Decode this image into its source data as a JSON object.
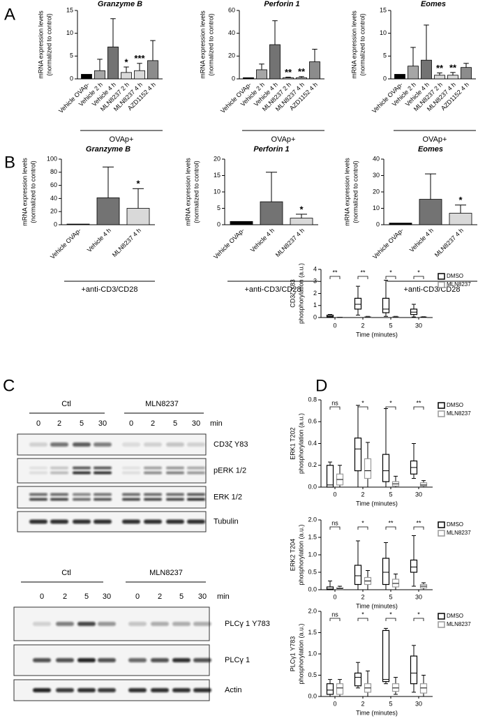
{
  "panel_labels": [
    "A",
    "B",
    "C",
    "D"
  ],
  "chart_data": [
    {
      "type": "bar",
      "title": "Granzyme B",
      "ylabel": [
        "mRNA expression levels",
        "(normalized to control)"
      ],
      "categories": [
        "Vehicle OVAp-",
        "Vehicle 2 h",
        "Vehicle 4 h",
        "MLN8237 2 h",
        "MLN8237 4 h",
        "AZD1152 4 h"
      ],
      "values": [
        1,
        1.8,
        7.0,
        1.4,
        1.8,
        4.0
      ],
      "errors": [
        null,
        2.5,
        6.2,
        1.2,
        1.6,
        4.4
      ],
      "colors": [
        "#000000",
        "#a6a6a6",
        "#737373",
        "#d9d9d9",
        "#d9d9d9",
        "#8c8c8c"
      ],
      "annotations": [
        null,
        null,
        null,
        "*",
        "***",
        null
      ],
      "group_label": "OVAp+",
      "ylim": [
        0,
        15
      ],
      "yticks": [
        0,
        5,
        10,
        15
      ]
    },
    {
      "type": "bar",
      "title": "Perforin 1",
      "ylabel": [
        "mRNA expression levels",
        "(normalized to control)"
      ],
      "categories": [
        "Vehicle OVAp-",
        "Vehicle 2 h",
        "Vehicle 4 h",
        "MLN8237 2 h",
        "MLN8237 4 h",
        "AZD1152 4 h"
      ],
      "values": [
        1,
        8,
        30,
        1,
        1,
        15
      ],
      "errors": [
        null,
        5,
        21,
        0.5,
        1,
        11
      ],
      "colors": [
        "#000000",
        "#a6a6a6",
        "#737373",
        "#d9d9d9",
        "#d9d9d9",
        "#8c8c8c"
      ],
      "annotations": [
        null,
        null,
        null,
        "**",
        "**",
        null
      ],
      "group_label": "OVAp+",
      "ylim": [
        0,
        60
      ],
      "yticks": [
        0,
        20,
        40,
        60
      ]
    },
    {
      "type": "bar",
      "title": "Eomes",
      "ylabel": [
        "mRNA expression levels",
        "(normalized to control)"
      ],
      "categories": [
        "Vehicle OVAp-",
        "Vehicle 2 h",
        "Vehicle 4 h",
        "MLN8237 2 h",
        "MLN8237 4 h",
        "AZD1152 4 h"
      ],
      "values": [
        1,
        2.8,
        4.1,
        0.8,
        0.8,
        2.5
      ],
      "errors": [
        null,
        4.1,
        7.7,
        0.5,
        0.6,
        0.9
      ],
      "colors": [
        "#000000",
        "#a6a6a6",
        "#737373",
        "#d9d9d9",
        "#d9d9d9",
        "#8c8c8c"
      ],
      "annotations": [
        null,
        null,
        null,
        "**",
        "**",
        null
      ],
      "group_label": "OVAp+",
      "ylim": [
        0,
        15
      ],
      "yticks": [
        0,
        5,
        10,
        15
      ]
    },
    {
      "type": "bar",
      "title": "Granzyme B",
      "ylabel": [
        "mRNA expression levels",
        "(normalized to control)"
      ],
      "categories": [
        "Vehicle OVAp-",
        "Vehicle 4 h",
        "MLN8237 4 h"
      ],
      "values": [
        1,
        41,
        25
      ],
      "errors": [
        null,
        47,
        30
      ],
      "colors": [
        "#000000",
        "#737373",
        "#d9d9d9"
      ],
      "annotations": [
        null,
        null,
        "*"
      ],
      "group_label": "+anti-CD3/CD28",
      "ylim": [
        0,
        100
      ],
      "yticks": [
        0,
        20,
        40,
        60,
        80,
        100
      ]
    },
    {
      "type": "bar",
      "title": "Perforin 1",
      "ylabel": [
        "mRNA expression levels",
        "(normalized to control)"
      ],
      "categories": [
        "Vehicle OVAp-",
        "Vehicle 4 h",
        "MLN8237 4 h"
      ],
      "values": [
        1,
        7,
        2
      ],
      "errors": [
        null,
        9,
        1.2
      ],
      "colors": [
        "#000000",
        "#737373",
        "#d9d9d9"
      ],
      "annotations": [
        null,
        null,
        "*"
      ],
      "group_label": "+anti-CD3/CD28",
      "ylim": [
        0,
        20
      ],
      "yticks": [
        0,
        5,
        10,
        15,
        20
      ]
    },
    {
      "type": "bar",
      "title": "Eomes",
      "ylabel": [
        "mRNA expression levels",
        "(normalized to control)"
      ],
      "categories": [
        "Vehicle OVAp-",
        "Vehicle 4 h",
        "MLN8237 4 h"
      ],
      "values": [
        1,
        15.5,
        7
      ],
      "errors": [
        null,
        15.5,
        5
      ],
      "colors": [
        "#000000",
        "#737373",
        "#d9d9d9"
      ],
      "annotations": [
        null,
        null,
        "*"
      ],
      "group_label": "+anti-CD3/CD28",
      "ylim": [
        0,
        40
      ],
      "yticks": [
        0,
        10,
        20,
        30,
        40
      ]
    },
    {
      "type": "box",
      "ylabel": [
        "CD3ζ Y83",
        "phosphorylation (a.u.)"
      ],
      "xlabel": "Time (minutes)",
      "categories": [
        "0",
        "2",
        "5",
        "30"
      ],
      "ylim": [
        0,
        4
      ],
      "yticks": [
        0,
        1,
        2,
        3,
        4
      ],
      "legend": "upper right",
      "series": [
        {
          "name": "DMSO",
          "color": "#000000",
          "values": [
            [
              0.02,
              0.05,
              0.1,
              0.2,
              0.25
            ],
            [
              0.2,
              0.7,
              1.1,
              1.6,
              2.6
            ],
            [
              0.1,
              0.4,
              0.7,
              1.6,
              3.1
            ],
            [
              0.05,
              0.25,
              0.45,
              0.7,
              1.1
            ]
          ]
        },
        {
          "name": "MLN8237",
          "color": "#999999",
          "values": [
            [
              0,
              0,
              0.01,
              0.02,
              0.03
            ],
            [
              0,
              0.02,
              0.04,
              0.06,
              0.1
            ],
            [
              0,
              0.02,
              0.04,
              0.06,
              0.1
            ],
            [
              0,
              0.02,
              0.03,
              0.05,
              0.08
            ]
          ]
        }
      ],
      "significance": [
        "**",
        "**",
        "*",
        "*"
      ]
    },
    {
      "type": "box",
      "ylabel": [
        "ERK1 T202",
        "phosphorylation (a.u.)"
      ],
      "xlabel": "Time (minutes)",
      "categories": [
        "0",
        "2",
        "5",
        "30"
      ],
      "ylim": [
        0,
        0.8
      ],
      "yticks": [
        {
          "value": 0,
          "label": "0.0"
        },
        0.2,
        0.4,
        0.6,
        0.8
      ],
      "legend": "upper right",
      "series": [
        {
          "name": "DMSO",
          "color": "#000000",
          "values": [
            [
              0,
              0,
              0.02,
              0.2,
              0.23
            ],
            [
              0,
              0.15,
              0.35,
              0.45,
              0.75
            ],
            [
              0,
              0.05,
              0.15,
              0.3,
              0.72
            ],
            [
              0.08,
              0.12,
              0.18,
              0.24,
              0.4
            ]
          ]
        },
        {
          "name": "MLN8237",
          "color": "#999999",
          "values": [
            [
              0,
              0.02,
              0.07,
              0.12,
              0.2
            ],
            [
              0,
              0.08,
              0.15,
              0.26,
              0.41
            ],
            [
              0,
              0.01,
              0.03,
              0.05,
              0.1
            ],
            [
              0,
              0.01,
              0.02,
              0.04,
              0.06
            ]
          ]
        }
      ],
      "significance": [
        "ns",
        "*",
        "*",
        "**"
      ]
    },
    {
      "type": "box",
      "ylabel": [
        "ERK2 T204",
        "phosphorylation (a.u.)"
      ],
      "xlabel": "Time (minutes)",
      "categories": [
        "0",
        "2",
        "5",
        "30"
      ],
      "ylim": [
        0,
        2
      ],
      "yticks": [
        {
          "value": 0,
          "label": "0.0"
        },
        0.5,
        {
          "value": 1,
          "label": "1.0"
        },
        1.5,
        {
          "value": 2,
          "label": "2.0"
        }
      ],
      "legend": "upper right",
      "series": [
        {
          "name": "DMSO",
          "color": "#000000",
          "values": [
            [
              0,
              0,
              0.02,
              0.08,
              0.25
            ],
            [
              0,
              0.15,
              0.4,
              0.7,
              1.4
            ],
            [
              0,
              0.15,
              0.5,
              0.9,
              1.35
            ],
            [
              0.1,
              0.5,
              0.65,
              0.85,
              1.55
            ]
          ]
        },
        {
          "name": "MLN8237",
          "color": "#999999",
          "values": [
            [
              0,
              0.01,
              0.03,
              0.06,
              0.1
            ],
            [
              0,
              0.15,
              0.25,
              0.35,
              0.55
            ],
            [
              0,
              0.08,
              0.18,
              0.3,
              0.45
            ],
            [
              0,
              0.05,
              0.1,
              0.15,
              0.2
            ]
          ]
        }
      ],
      "significance": [
        "ns",
        "*",
        "**",
        "**"
      ]
    },
    {
      "type": "box",
      "ylabel": [
        "PLCγ1 Y783",
        "phosphorylation (a.u.)"
      ],
      "xlabel": "Time (minutes)",
      "categories": [
        "0",
        "2",
        "5",
        "30"
      ],
      "ylim": [
        0,
        2
      ],
      "yticks": [
        {
          "value": 0,
          "label": "0.0"
        },
        0.5,
        {
          "value": 1,
          "label": "1.0"
        },
        1.5,
        {
          "value": 2,
          "label": "2.0"
        }
      ],
      "legend": "upper right",
      "series": [
        {
          "name": "DMSO",
          "color": "#000000",
          "values": [
            [
              0,
              0.05,
              0.15,
              0.3,
              0.4
            ],
            [
              0.2,
              0.25,
              0.45,
              0.55,
              0.8
            ],
            [
              0.3,
              0.35,
              0.4,
              1.55,
              1.6
            ],
            [
              0.1,
              0.3,
              0.55,
              0.95,
              1.2
            ]
          ]
        },
        {
          "name": "MLN8237",
          "color": "#999999",
          "values": [
            [
              0,
              0.05,
              0.2,
              0.3,
              0.4
            ],
            [
              0,
              0.1,
              0.2,
              0.3,
              0.6
            ],
            [
              0.05,
              0.12,
              0.2,
              0.3,
              0.45
            ],
            [
              0,
              0.08,
              0.2,
              0.3,
              0.5
            ]
          ]
        }
      ],
      "significance": [
        "ns",
        "*",
        "*",
        "*"
      ]
    }
  ],
  "blots": [
    {
      "groups": [
        "Ctl",
        "MLN8237"
      ],
      "lanes": [
        "0",
        "2",
        "5",
        "30"
      ],
      "unit": "min",
      "rows": [
        "CD3ζ Y83",
        "pERK 1/2",
        "ERK 1/2",
        "Tubulin"
      ]
    },
    {
      "groups": [
        "Ctl",
        "MLN8237"
      ],
      "lanes": [
        "0",
        "2",
        "5",
        "30"
      ],
      "unit": "min",
      "rows": [
        "PLCγ 1 Y783",
        "PLCγ 1",
        "Actin"
      ]
    }
  ]
}
